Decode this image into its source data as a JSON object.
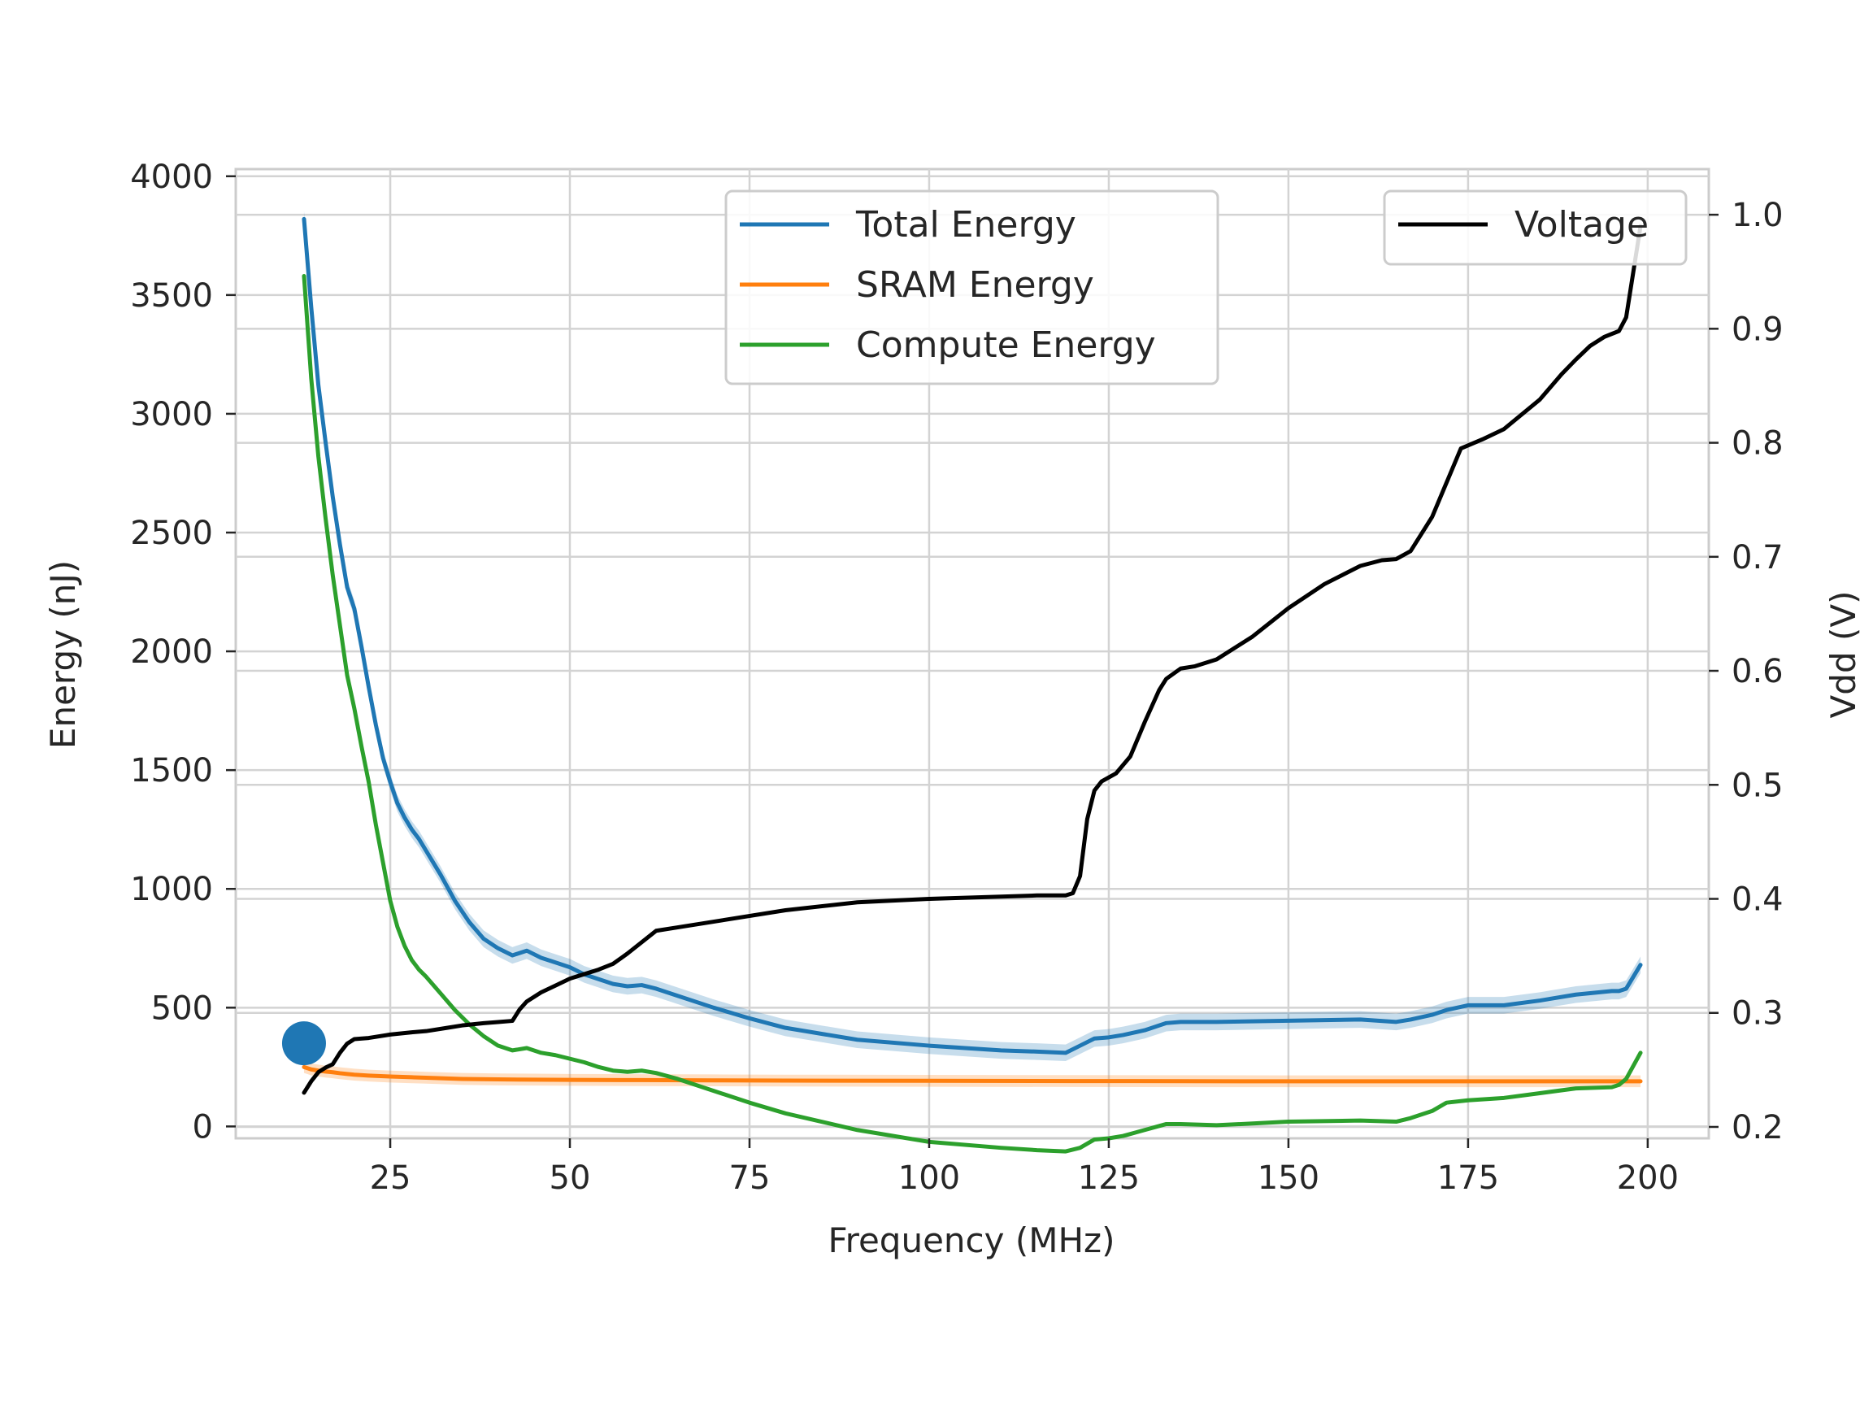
{
  "chart_data": {
    "type": "line",
    "title": "",
    "xlabel": "Frequency (MHz)",
    "ylabel": "Energy (nJ)",
    "y2label": "Vdd (V)",
    "xlim": [
      3.5,
      208.5
    ],
    "ylim": [
      -50,
      4030
    ],
    "y2lim": [
      0.19,
      1.04
    ],
    "x_ticks": [
      25,
      50,
      75,
      100,
      125,
      150,
      175,
      200
    ],
    "y_ticks": [
      0,
      500,
      1000,
      1500,
      2000,
      2500,
      3000,
      3500,
      4000
    ],
    "y2_ticks": [
      0.2,
      0.3,
      0.4,
      0.5,
      0.6,
      0.7,
      0.8,
      0.9,
      1.0
    ],
    "grid": true,
    "legends": [
      {
        "placement": "upper-center",
        "entries": [
          "Total Energy",
          "SRAM Energy",
          "Compute Energy"
        ]
      },
      {
        "placement": "upper-right",
        "entries": [
          "Voltage"
        ]
      }
    ],
    "series": [
      {
        "name": "Total Energy",
        "axis": "left",
        "color": "#1f77b4",
        "band": 35,
        "x": [
          13,
          14,
          15,
          16,
          17,
          18,
          19,
          20,
          21,
          22,
          23,
          24,
          25,
          26,
          27,
          28,
          29,
          30,
          32,
          34,
          36,
          38,
          40,
          42,
          44,
          46,
          48,
          50,
          52,
          54,
          56,
          58,
          60,
          62,
          65,
          70,
          75,
          80,
          90,
          100,
          110,
          115,
          119,
          121,
          123,
          125,
          127,
          130,
          133,
          135,
          140,
          150,
          160,
          165,
          167,
          170,
          172,
          175,
          180,
          185,
          190,
          195,
          196,
          197,
          199
        ],
        "y": [
          3820,
          3450,
          3120,
          2880,
          2650,
          2450,
          2270,
          2180,
          2020,
          1850,
          1690,
          1550,
          1450,
          1360,
          1300,
          1250,
          1210,
          1160,
          1060,
          950,
          860,
          790,
          750,
          720,
          740,
          710,
          690,
          670,
          640,
          620,
          600,
          590,
          595,
          580,
          550,
          500,
          455,
          415,
          365,
          340,
          320,
          315,
          310,
          340,
          370,
          375,
          385,
          405,
          435,
          440,
          440,
          445,
          450,
          440,
          450,
          470,
          490,
          510,
          510,
          530,
          555,
          570,
          570,
          580,
          680
        ]
      },
      {
        "name": "SRAM Energy",
        "axis": "left",
        "color": "#ff7f0e",
        "band": 25,
        "x": [
          13,
          14,
          15,
          16,
          17,
          18,
          19,
          20,
          22,
          25,
          28,
          30,
          35,
          40,
          45,
          50,
          60,
          70,
          80,
          100,
          120,
          150,
          180,
          199
        ],
        "y": [
          250,
          240,
          235,
          231,
          228,
          224,
          221,
          218,
          214,
          210,
          207,
          205,
          200,
          198,
          197,
          196,
          195,
          194,
          193,
          192,
          191,
          190,
          190,
          190
        ]
      },
      {
        "name": "Compute Energy",
        "axis": "left",
        "color": "#2ca02c",
        "band": 0,
        "x": [
          13,
          14,
          15,
          16,
          17,
          18,
          19,
          20,
          21,
          22,
          23,
          24,
          25,
          26,
          27,
          28,
          29,
          30,
          32,
          34,
          36,
          38,
          40,
          42,
          44,
          46,
          48,
          50,
          52,
          54,
          56,
          58,
          60,
          62,
          65,
          70,
          75,
          80,
          90,
          100,
          110,
          115,
          119,
          121,
          123,
          125,
          127,
          130,
          133,
          135,
          140,
          150,
          160,
          165,
          167,
          170,
          172,
          175,
          180,
          185,
          190,
          195,
          196,
          197,
          199
        ],
        "y": [
          3580,
          3150,
          2820,
          2560,
          2320,
          2110,
          1900,
          1760,
          1600,
          1450,
          1270,
          1110,
          950,
          840,
          760,
          700,
          660,
          630,
          560,
          490,
          430,
          380,
          340,
          320,
          330,
          310,
          300,
          285,
          270,
          250,
          235,
          230,
          235,
          225,
          200,
          150,
          100,
          55,
          -15,
          -65,
          -90,
          -100,
          -105,
          -90,
          -55,
          -50,
          -40,
          -15,
          10,
          10,
          5,
          20,
          25,
          20,
          35,
          65,
          100,
          110,
          120,
          140,
          160,
          165,
          175,
          200,
          310
        ]
      },
      {
        "name": "Voltage",
        "axis": "right",
        "color": "#000000",
        "band": 0,
        "x": [
          13,
          14,
          15,
          16,
          17,
          18,
          19,
          20,
          22,
          25,
          28,
          30,
          33,
          35,
          38,
          40,
          42,
          43,
          44,
          46,
          48,
          50,
          52,
          54,
          56,
          58,
          60,
          62,
          65,
          70,
          80,
          90,
          100,
          110,
          115,
          119,
          120,
          121,
          122,
          123,
          124,
          126,
          128,
          130,
          132,
          133,
          135,
          137,
          140,
          145,
          150,
          155,
          160,
          163,
          165,
          167,
          170,
          172,
          174,
          177,
          180,
          185,
          188,
          190,
          192,
          194,
          196,
          197,
          198,
          199
        ],
        "y": [
          0.23,
          0.24,
          0.248,
          0.252,
          0.255,
          0.265,
          0.273,
          0.277,
          0.278,
          0.281,
          0.283,
          0.284,
          0.287,
          0.289,
          0.291,
          0.292,
          0.293,
          0.303,
          0.31,
          0.318,
          0.324,
          0.33,
          0.334,
          0.338,
          0.343,
          0.352,
          0.362,
          0.372,
          0.375,
          0.38,
          0.39,
          0.397,
          0.4,
          0.402,
          0.403,
          0.403,
          0.405,
          0.42,
          0.47,
          0.495,
          0.503,
          0.51,
          0.525,
          0.555,
          0.583,
          0.593,
          0.602,
          0.604,
          0.61,
          0.63,
          0.655,
          0.676,
          0.692,
          0.697,
          0.698,
          0.705,
          0.735,
          0.765,
          0.795,
          0.803,
          0.812,
          0.838,
          0.86,
          0.873,
          0.885,
          0.893,
          0.898,
          0.91,
          0.95,
          0.99
        ]
      }
    ],
    "marker": {
      "x": 13,
      "y": 350,
      "color": "#1f77b4"
    }
  }
}
